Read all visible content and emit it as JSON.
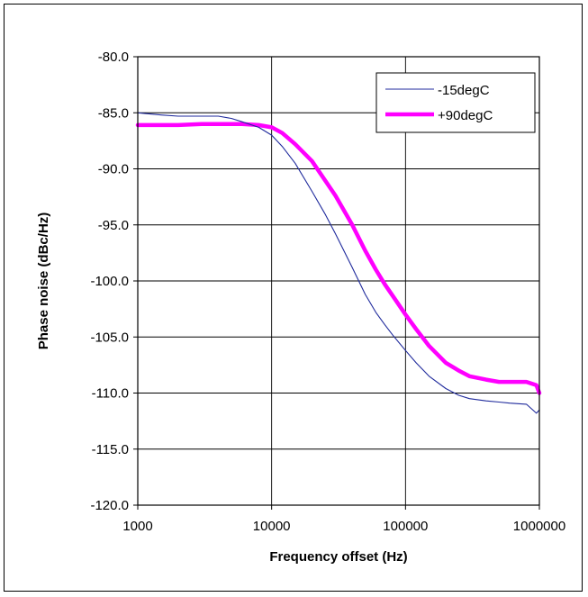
{
  "chart_data": {
    "type": "line",
    "title": "",
    "xlabel": "Frequency offset (Hz)",
    "ylabel": "Phase noise (dBc/Hz)",
    "x_scale": "log",
    "xlim": [
      1000,
      1000000
    ],
    "ylim": [
      -120,
      -80
    ],
    "x_ticks": [
      "1000",
      "10000",
      "100000",
      "1000000"
    ],
    "y_ticks": [
      "-80.0",
      "-85.0",
      "-90.0",
      "-95.0",
      "-100.0",
      "-105.0",
      "-110.0",
      "-115.0",
      "-120.0"
    ],
    "grid": true,
    "legend_position": "top-right",
    "series": [
      {
        "name": "-15degC",
        "color": "#1f2a9c",
        "x": [
          1000,
          1500,
          2000,
          3000,
          4000,
          5000,
          6000,
          8000,
          10000,
          12000,
          15000,
          20000,
          25000,
          30000,
          40000,
          50000,
          60000,
          70000,
          80000,
          100000,
          120000,
          150000,
          200000,
          250000,
          300000,
          400000,
          500000,
          600000,
          800000,
          950000,
          1000000
        ],
        "y": [
          -85.0,
          -85.2,
          -85.3,
          -85.3,
          -85.3,
          -85.5,
          -85.8,
          -86.3,
          -87.0,
          -88.0,
          -89.5,
          -92.0,
          -94.0,
          -95.8,
          -98.8,
          -101.2,
          -102.8,
          -103.9,
          -104.8,
          -106.2,
          -107.3,
          -108.5,
          -109.6,
          -110.2,
          -110.5,
          -110.7,
          -110.8,
          -110.9,
          -111.0,
          -111.8,
          -111.5
        ]
      },
      {
        "name": "+90degC",
        "color": "#ff00ff",
        "x": [
          1000,
          1500,
          2000,
          3000,
          4000,
          5000,
          6000,
          8000,
          10000,
          12000,
          15000,
          20000,
          25000,
          30000,
          40000,
          50000,
          60000,
          70000,
          80000,
          100000,
          120000,
          150000,
          200000,
          250000,
          300000,
          400000,
          500000,
          600000,
          800000,
          950000,
          1000000
        ],
        "y": [
          -86.1,
          -86.1,
          -86.1,
          -86.0,
          -86.0,
          -86.0,
          -86.0,
          -86.1,
          -86.3,
          -86.8,
          -87.8,
          -89.3,
          -91.0,
          -92.4,
          -95.0,
          -97.3,
          -99.0,
          -100.3,
          -101.3,
          -103.0,
          -104.3,
          -105.8,
          -107.3,
          -108.0,
          -108.5,
          -108.8,
          -109.0,
          -109.0,
          -109.0,
          -109.3,
          -110.0
        ]
      }
    ]
  }
}
